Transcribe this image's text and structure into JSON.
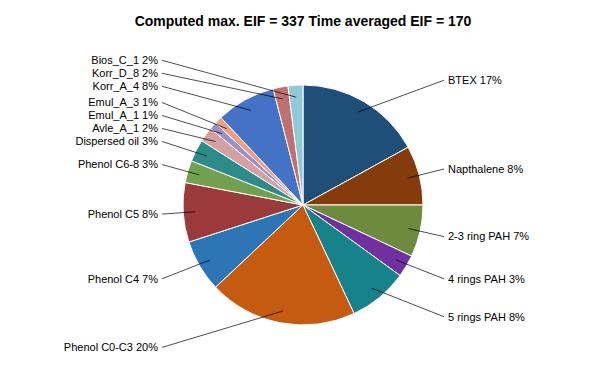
{
  "chart_data": {
    "type": "pie",
    "title": "Computed max. EIF = 337    Time averaged EIF = 170",
    "categories": [
      "BTEX 17%",
      "Napthalene 8%",
      "2-3 ring PAH 7%",
      "4 rings PAH 3%",
      "5 rings PAH 8%",
      "Phenol C0-C3 20%",
      "Phenol C4 7%",
      "Phenol C5 8%",
      "Phenol C6-8 3%",
      "Dispersed oil 3%",
      "Avle_A_1 2%",
      "Emul_A_1 1%",
      "Emul_A_3 1%",
      "Korr_A_4 8%",
      "Korr_D_8 2%",
      "Bios_C_1 2%"
    ],
    "values": [
      17,
      8,
      7,
      3,
      8,
      20,
      7,
      8,
      3,
      3,
      2,
      1,
      1,
      8,
      2,
      2
    ],
    "colors": [
      "#1f4e79",
      "#843c0c",
      "#6e8b3d",
      "#7030a0",
      "#17828a",
      "#c55a11",
      "#2e75b6",
      "#9b3a3a",
      "#70a050",
      "#2e8b8b",
      "#d4a0a0",
      "#9b8fc8",
      "#e8a080",
      "#4472c4",
      "#c07070",
      "#90c8d8"
    ]
  }
}
